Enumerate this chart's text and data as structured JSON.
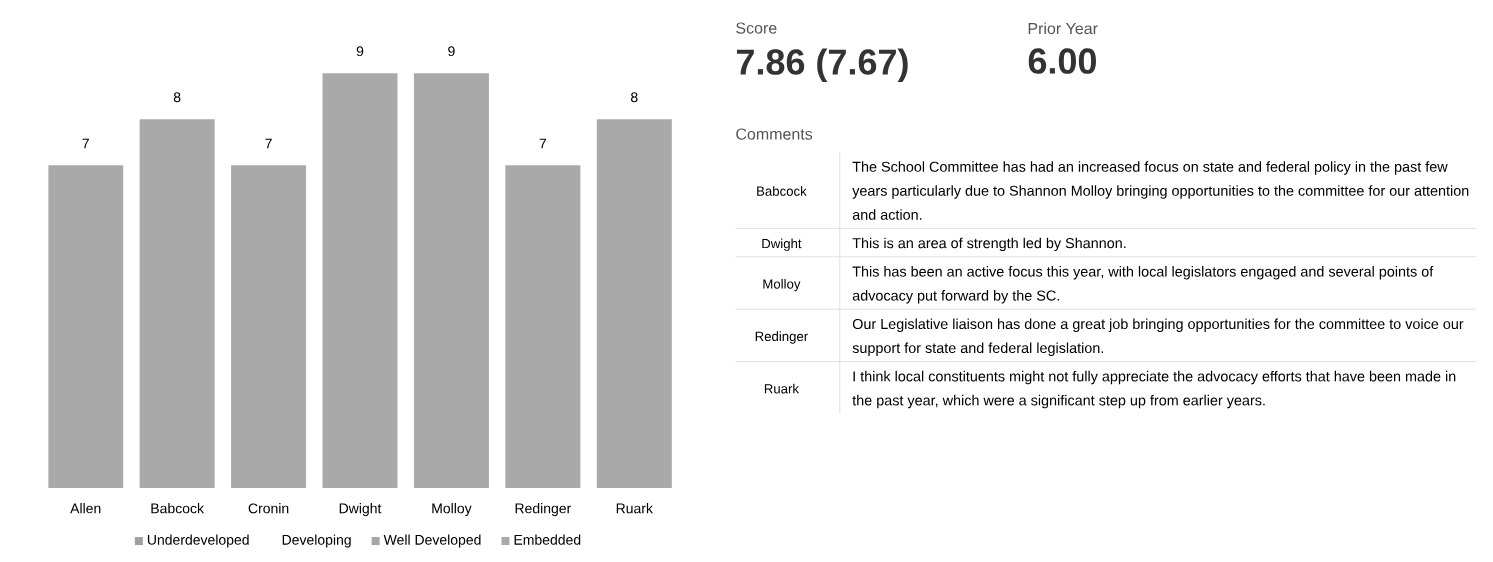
{
  "chart_data": [
    {
      "type": "bar",
      "categories": [
        "Allen",
        "Babcock",
        "Cronin",
        "Dwight",
        "Molloy",
        "Redinger",
        "Ruark"
      ],
      "data_labels": true,
      "legend": "bottom",
      "series": [
        {
          "name": "Underdeveloped",
          "color": "#a0a0a0",
          "values": [
            null,
            null,
            null,
            null,
            null,
            null,
            null
          ]
        },
        {
          "name": "Developing",
          "values": [
            null,
            null,
            null,
            null,
            null,
            null,
            null
          ]
        },
        {
          "name": "Well Developed",
          "color": "#a6a6a6",
          "values": [
            null,
            null,
            null,
            null,
            null,
            null,
            null
          ]
        },
        {
          "name": "Embedded",
          "color": "#a9a9a9",
          "values": [
            7,
            8,
            7,
            9,
            9,
            7,
            8
          ]
        }
      ]
    },
    {
      "type": "other",
      "annotations": [
        "Score",
        "7.86 (7.67)",
        "Prior Year",
        "6.00",
        "Comments",
        "Babcock",
        "The School Committee has had an increased focus on state and federal policy in the past few years particularly due to Shannon Molloy bringing opportunities to the committee for our attention and action.",
        "Dwight",
        "This is an area of strength led by Shannon.",
        "Molloy",
        "This has been an active focus this year, with local legislators engaged and several points of advocacy put forward by the SC.",
        "Redinger",
        "Our Legislative liaison has done a great job bringing opportunities for the committee to voice our support for state and federal legislation.",
        "Ruark",
        "I think local constituents might not fully appreciate the advocacy efforts that have been made in the past year, which were a significant step up from earlier years."
      ]
    }
  ]
}
